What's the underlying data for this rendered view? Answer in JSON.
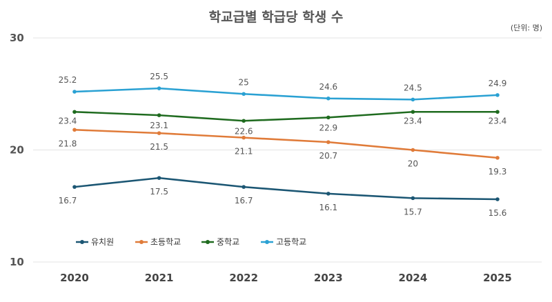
{
  "chart_data": {
    "type": "line",
    "title": "학교급별 학급당 학생 수",
    "unit_label": "(단위: 명)",
    "x": [
      "2020",
      "2021",
      "2022",
      "2023",
      "2024",
      "2025"
    ],
    "ylim": [
      10,
      30
    ],
    "yticks": [
      "10",
      "20",
      "30"
    ],
    "grid": true,
    "legend_position": "bottom-left",
    "series": [
      {
        "name": "유치원",
        "color": "#1b5673",
        "values": [
          16.7,
          17.5,
          16.7,
          16.1,
          15.7,
          15.6
        ]
      },
      {
        "name": "초등학교",
        "color": "#e07b39",
        "values": [
          21.8,
          21.5,
          21.1,
          20.7,
          20,
          19.3
        ]
      },
      {
        "name": "중학교",
        "color": "#1f6b1f",
        "values": [
          23.4,
          23.1,
          22.6,
          22.9,
          23.4,
          23.4
        ]
      },
      {
        "name": "고등학교",
        "color": "#2aa1d3",
        "values": [
          25.2,
          25.5,
          25,
          24.6,
          24.5,
          24.9
        ]
      }
    ]
  }
}
